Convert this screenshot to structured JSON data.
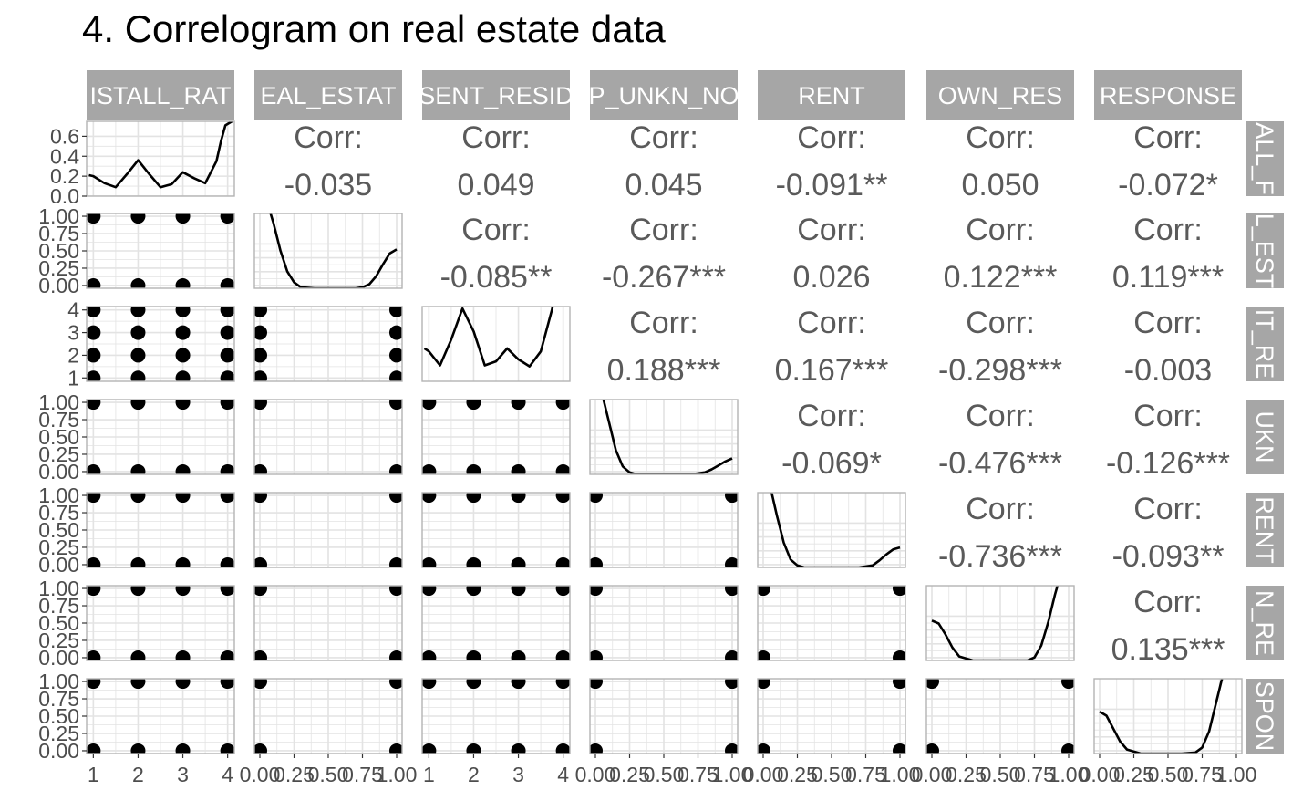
{
  "title": "4. Correlogram on real estate data",
  "chart_data": {
    "type": "scatter",
    "kind": "pairs-correlogram",
    "variables": [
      "INSTALL_RATE",
      "REAL_ESTATE",
      "PRESENT_RESIDENT",
      "PROP_UNKN_NONE",
      "RENT",
      "OWN_RES",
      "RESPONSE"
    ],
    "column_strip_labels": [
      "ISTALL_RAT",
      "EAL_ESTAT",
      "SENT_RESID",
      "P_UNKN_NO",
      "RENT",
      "OWN_RES",
      "RESPONSE"
    ],
    "row_strip_labels": [
      "ALL_F",
      "L_EST",
      "IT_RE",
      "UKN",
      "RENT",
      "N_RE",
      "SPON"
    ],
    "corr_prefix": "Corr:",
    "correlations": [
      {
        "row": 0,
        "col": 1,
        "text": "-0.035"
      },
      {
        "row": 0,
        "col": 2,
        "text": "0.049"
      },
      {
        "row": 0,
        "col": 3,
        "text": "0.045"
      },
      {
        "row": 0,
        "col": 4,
        "text": "-0.091**"
      },
      {
        "row": 0,
        "col": 5,
        "text": "0.050"
      },
      {
        "row": 0,
        "col": 6,
        "text": "-0.072*"
      },
      {
        "row": 1,
        "col": 2,
        "text": "-0.085**"
      },
      {
        "row": 1,
        "col": 3,
        "text": "-0.267***"
      },
      {
        "row": 1,
        "col": 4,
        "text": "0.026"
      },
      {
        "row": 1,
        "col": 5,
        "text": "0.122***"
      },
      {
        "row": 1,
        "col": 6,
        "text": "0.119***"
      },
      {
        "row": 2,
        "col": 3,
        "text": "0.188***"
      },
      {
        "row": 2,
        "col": 4,
        "text": "0.167***"
      },
      {
        "row": 2,
        "col": 5,
        "text": "-0.298***"
      },
      {
        "row": 2,
        "col": 6,
        "text": "-0.003"
      },
      {
        "row": 3,
        "col": 4,
        "text": "-0.069*"
      },
      {
        "row": 3,
        "col": 5,
        "text": "-0.476***"
      },
      {
        "row": 3,
        "col": 6,
        "text": "-0.126***"
      },
      {
        "row": 4,
        "col": 5,
        "text": "-0.736***"
      },
      {
        "row": 4,
        "col": 6,
        "text": "-0.093**"
      },
      {
        "row": 5,
        "col": 6,
        "text": "0.135***"
      }
    ],
    "points_values": [
      [
        1,
        2,
        3,
        4
      ],
      [
        0,
        1
      ],
      [
        1,
        2,
        3,
        4
      ],
      [
        0,
        1
      ],
      [
        0,
        1
      ],
      [
        0,
        1
      ],
      [
        0,
        1
      ]
    ],
    "axis_ranges": [
      [
        0.85,
        4.15
      ],
      [
        -0.04,
        1.04
      ],
      [
        0.85,
        4.15
      ],
      [
        -0.04,
        1.04
      ],
      [
        -0.04,
        1.04
      ],
      [
        -0.04,
        1.04
      ],
      [
        -0.04,
        1.04
      ]
    ],
    "x_tick_values": [
      [
        1,
        2,
        3,
        4
      ],
      [
        0.0,
        0.25,
        0.5,
        0.75,
        1.0
      ],
      [
        1,
        2,
        3,
        4
      ],
      [
        0.0,
        0.25,
        0.5,
        0.75,
        1.0
      ],
      [
        0.0,
        0.25,
        0.5,
        0.75,
        1.0
      ],
      [
        0.0,
        0.25,
        0.5,
        0.75,
        1.0
      ],
      [
        0.0,
        0.25,
        0.5,
        0.75,
        1.0
      ]
    ],
    "x_tick_labels": [
      [
        "1",
        "2",
        "3",
        "4"
      ],
      [
        "0.00",
        "0.25",
        "0.50",
        "0.75",
        "1.00"
      ],
      [
        "1",
        "2",
        "3",
        "4"
      ],
      [
        "0.00",
        "0.25",
        "0.50",
        "0.75",
        "1.00"
      ],
      [
        "0.00",
        "0.25",
        "0.50",
        "0.75",
        "1.00"
      ],
      [
        "0.00",
        "0.25",
        "0.50",
        "0.75",
        "1.00"
      ],
      [
        "0.00",
        "0.25",
        "0.50",
        "0.75",
        "1.00"
      ]
    ],
    "y_tick_values": [
      [
        0.0,
        0.2,
        0.4,
        0.6
      ],
      [
        0.0,
        0.25,
        0.5,
        0.75,
        1.0
      ],
      [
        1,
        2,
        3,
        4
      ],
      [
        0.0,
        0.25,
        0.5,
        0.75,
        1.0
      ],
      [
        0.0,
        0.25,
        0.5,
        0.75,
        1.0
      ],
      [
        0.0,
        0.25,
        0.5,
        0.75,
        1.0
      ],
      [
        0.0,
        0.25,
        0.5,
        0.75,
        1.0
      ]
    ],
    "y_tick_labels": [
      [
        "0.0",
        "0.2",
        "0.4",
        "0.6"
      ],
      [
        "0.00",
        "0.25",
        "0.50",
        "0.75",
        "1.00"
      ],
      [
        "1",
        "2",
        "3",
        "4"
      ],
      [
        "0.00",
        "0.25",
        "0.50",
        "0.75",
        "1.00"
      ],
      [
        "0.00",
        "0.25",
        "0.50",
        "0.75",
        "1.00"
      ],
      [
        "0.00",
        "0.25",
        "0.50",
        "0.75",
        "1.00"
      ],
      [
        "0.00",
        "0.25",
        "0.50",
        "0.75",
        "1.00"
      ]
    ],
    "density_ylim": [
      0,
      0.75
    ],
    "density_curves": [
      {
        "x": [
          0.9,
          1.0,
          1.25,
          1.5,
          1.75,
          2.0,
          2.25,
          2.5,
          2.75,
          3.0,
          3.25,
          3.5,
          3.75,
          3.85,
          3.95,
          4.1
        ],
        "y": [
          0.21,
          0.2,
          0.13,
          0.09,
          0.22,
          0.36,
          0.22,
          0.09,
          0.12,
          0.24,
          0.18,
          0.13,
          0.35,
          0.55,
          0.71,
          0.75
        ]
      },
      {
        "x": [
          0.0,
          0.05,
          0.1,
          0.15,
          0.2,
          0.25,
          0.3,
          0.4,
          0.5,
          0.6,
          0.7,
          0.75,
          0.8,
          0.85,
          0.9,
          0.95,
          1.0
        ],
        "y": [
          0.97,
          0.88,
          0.65,
          0.38,
          0.17,
          0.06,
          0.01,
          0.0,
          0.0,
          0.0,
          0.0,
          0.01,
          0.04,
          0.12,
          0.24,
          0.35,
          0.39
        ]
      },
      {
        "x": [
          0.9,
          1.0,
          1.25,
          1.5,
          1.75,
          2.0,
          2.25,
          2.5,
          2.75,
          3.0,
          3.25,
          3.5,
          3.75,
          3.85,
          3.95,
          4.0
        ],
        "y": [
          0.33,
          0.3,
          0.16,
          0.42,
          0.73,
          0.5,
          0.16,
          0.2,
          0.33,
          0.22,
          0.15,
          0.3,
          0.72,
          0.92,
          1.0,
          1.0
        ]
      },
      {
        "x": [
          0.0,
          0.05,
          0.1,
          0.15,
          0.2,
          0.25,
          0.3,
          0.4,
          0.5,
          0.6,
          0.7,
          0.8,
          0.85,
          0.9,
          0.95,
          1.0
        ],
        "y": [
          0.96,
          0.8,
          0.52,
          0.24,
          0.08,
          0.02,
          0.0,
          0.0,
          0.0,
          0.0,
          0.0,
          0.02,
          0.05,
          0.09,
          0.13,
          0.16
        ]
      },
      {
        "x": [
          0.0,
          0.05,
          0.1,
          0.15,
          0.2,
          0.25,
          0.3,
          0.4,
          0.5,
          0.6,
          0.7,
          0.8,
          0.85,
          0.9,
          0.95,
          1.0
        ],
        "y": [
          0.97,
          0.82,
          0.52,
          0.25,
          0.08,
          0.02,
          0.0,
          0.0,
          0.0,
          0.0,
          0.0,
          0.02,
          0.07,
          0.13,
          0.18,
          0.2
        ]
      },
      {
        "x": [
          0.0,
          0.05,
          0.1,
          0.15,
          0.2,
          0.3,
          0.4,
          0.5,
          0.6,
          0.7,
          0.75,
          0.8,
          0.85,
          0.9,
          0.95,
          1.0
        ],
        "y": [
          0.4,
          0.37,
          0.26,
          0.13,
          0.04,
          0.0,
          0.0,
          0.0,
          0.0,
          0.0,
          0.03,
          0.15,
          0.38,
          0.66,
          0.9,
          0.98
        ]
      },
      {
        "x": [
          0.0,
          0.05,
          0.1,
          0.15,
          0.2,
          0.3,
          0.4,
          0.5,
          0.6,
          0.7,
          0.75,
          0.8,
          0.85,
          0.9,
          0.95,
          1.0
        ],
        "y": [
          0.42,
          0.38,
          0.25,
          0.12,
          0.04,
          0.0,
          0.0,
          0.0,
          0.0,
          0.01,
          0.06,
          0.22,
          0.5,
          0.78,
          0.95,
          0.99
        ]
      }
    ],
    "grid": true,
    "colors": {
      "strip": "#a6a6a6",
      "strip_text": "#ffffff",
      "panel_border": "#b3b3b3",
      "grid": "#e3e3e3",
      "ink": "#000000",
      "corr_text": "#5a5a5a"
    }
  }
}
